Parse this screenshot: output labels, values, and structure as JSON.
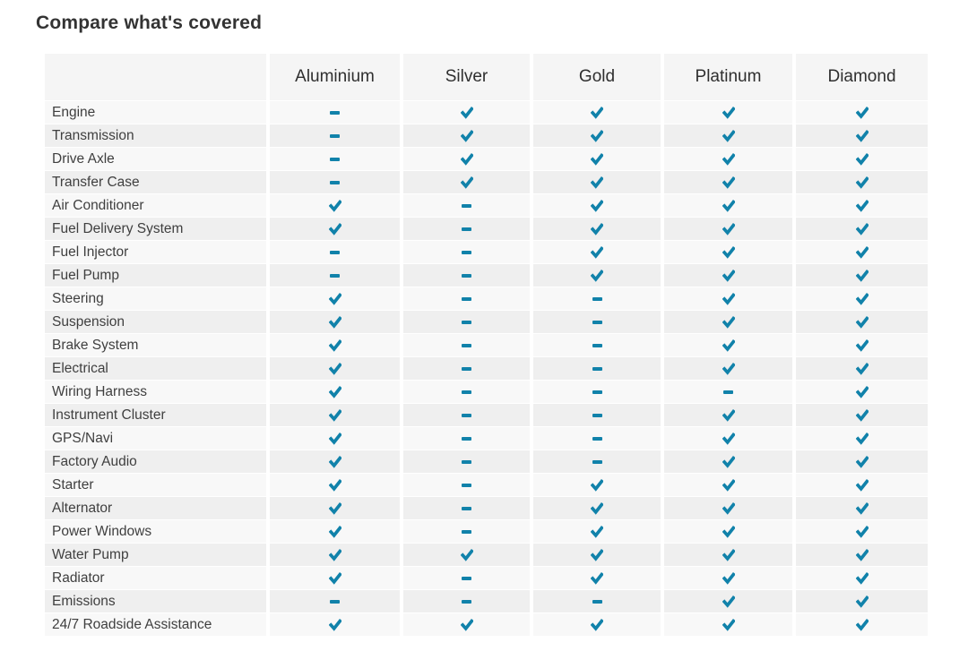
{
  "page_title": "Compare what's covered",
  "colors": {
    "accent": "#1182aa",
    "row_light": "#f8f8f8",
    "row_dark": "#efefef",
    "header_bg": "#f5f5f5",
    "label_text": "#3f3f3f",
    "header_text": "#2f2f2f",
    "title_text": "#333333"
  },
  "icons": {
    "check": "check-icon",
    "dash": "dash-icon"
  },
  "table": {
    "columns": [
      "Aluminium",
      "Silver",
      "Gold",
      "Platinum",
      "Diamond"
    ],
    "rows": [
      {
        "label": "Engine",
        "values": [
          "dash",
          "check",
          "check",
          "check",
          "check"
        ]
      },
      {
        "label": "Transmission",
        "values": [
          "dash",
          "check",
          "check",
          "check",
          "check"
        ]
      },
      {
        "label": "Drive Axle",
        "values": [
          "dash",
          "check",
          "check",
          "check",
          "check"
        ]
      },
      {
        "label": "Transfer Case",
        "values": [
          "dash",
          "check",
          "check",
          "check",
          "check"
        ]
      },
      {
        "label": "Air Conditioner",
        "values": [
          "check",
          "dash",
          "check",
          "check",
          "check"
        ]
      },
      {
        "label": "Fuel Delivery System",
        "values": [
          "check",
          "dash",
          "check",
          "check",
          "check"
        ]
      },
      {
        "label": "Fuel Injector",
        "values": [
          "dash",
          "dash",
          "check",
          "check",
          "check"
        ]
      },
      {
        "label": "Fuel Pump",
        "values": [
          "dash",
          "dash",
          "check",
          "check",
          "check"
        ]
      },
      {
        "label": "Steering",
        "values": [
          "check",
          "dash",
          "dash",
          "check",
          "check"
        ]
      },
      {
        "label": "Suspension",
        "values": [
          "check",
          "dash",
          "dash",
          "check",
          "check"
        ]
      },
      {
        "label": "Brake System",
        "values": [
          "check",
          "dash",
          "dash",
          "check",
          "check"
        ]
      },
      {
        "label": "Electrical",
        "values": [
          "check",
          "dash",
          "dash",
          "check",
          "check"
        ]
      },
      {
        "label": "Wiring Harness",
        "values": [
          "check",
          "dash",
          "dash",
          "dash",
          "check"
        ]
      },
      {
        "label": "Instrument Cluster",
        "values": [
          "check",
          "dash",
          "dash",
          "check",
          "check"
        ]
      },
      {
        "label": "GPS/Navi",
        "values": [
          "check",
          "dash",
          "dash",
          "check",
          "check"
        ]
      },
      {
        "label": "Factory Audio",
        "values": [
          "check",
          "dash",
          "dash",
          "check",
          "check"
        ]
      },
      {
        "label": "Starter",
        "values": [
          "check",
          "dash",
          "check",
          "check",
          "check"
        ]
      },
      {
        "label": "Alternator",
        "values": [
          "check",
          "dash",
          "check",
          "check",
          "check"
        ]
      },
      {
        "label": "Power Windows",
        "values": [
          "check",
          "dash",
          "check",
          "check",
          "check"
        ]
      },
      {
        "label": "Water Pump",
        "values": [
          "check",
          "check",
          "check",
          "check",
          "check"
        ]
      },
      {
        "label": "Radiator",
        "values": [
          "check",
          "dash",
          "check",
          "check",
          "check"
        ]
      },
      {
        "label": "Emissions",
        "values": [
          "dash",
          "dash",
          "dash",
          "check",
          "check"
        ]
      },
      {
        "label": "24/7 Roadside Assistance",
        "values": [
          "check",
          "check",
          "check",
          "check",
          "check"
        ]
      }
    ]
  }
}
